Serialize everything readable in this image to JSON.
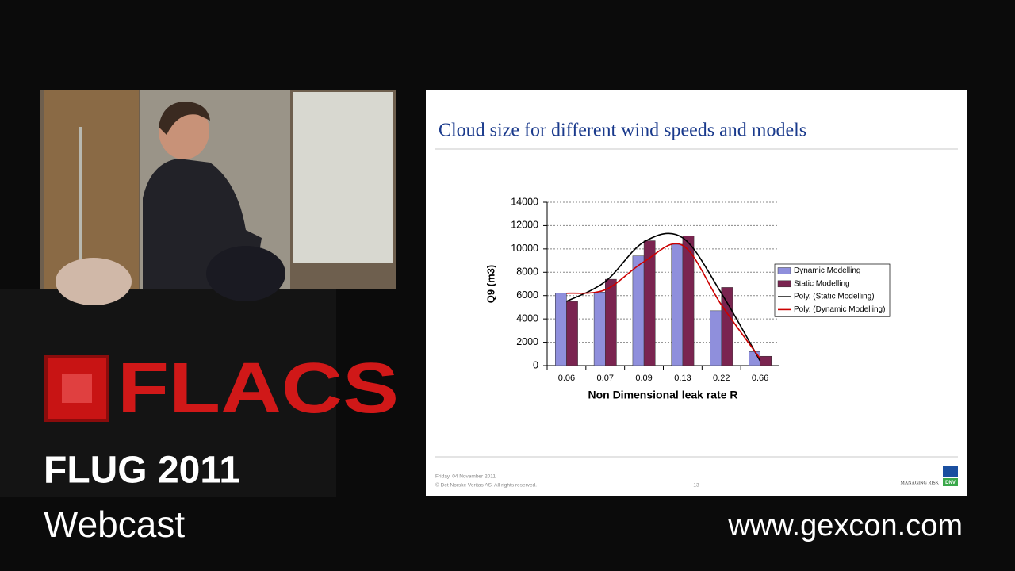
{
  "chart_data": {
    "type": "bar",
    "title": "Cloud size for different wind speeds and models",
    "x_label": "Non Dimensional leak rate R",
    "y_label": "Q9 (m3)",
    "categories": [
      "0.06",
      "0.07",
      "0.09",
      "0.13",
      "0.22",
      "0.66"
    ],
    "ylim": [
      0,
      14000
    ],
    "yticks": [
      0,
      2000,
      4000,
      6000,
      8000,
      10000,
      12000,
      14000
    ],
    "grid": true,
    "series": [
      {
        "name": "Dynamic Modelling",
        "color": "#8f8fdc",
        "values": [
          6200,
          6300,
          9400,
          10400,
          4700,
          1200
        ]
      },
      {
        "name": "Static Modelling",
        "color": "#7a2450",
        "values": [
          5500,
          7400,
          10700,
          11100,
          6700,
          800
        ]
      },
      {
        "name": "Poly. (Static Modelling)",
        "color": "#000000",
        "type": "line",
        "smooth": true,
        "values": [
          5500,
          7200,
          10600,
          10950,
          6200,
          400
        ]
      },
      {
        "name": "Poly. (Dynamic Modelling)",
        "color": "#cc0000",
        "type": "line",
        "smooth": true,
        "values": [
          6200,
          6500,
          8900,
          10300,
          5200,
          600
        ]
      }
    ]
  },
  "footer": {
    "date": "Friday, 04 November 2011",
    "copyright": "© Det Norske Veritas AS. All rights reserved.",
    "page": "13",
    "brand": "MANAGING RISK",
    "logo": "DNV"
  },
  "overlay": {
    "logo": "FLACS",
    "event": "FLUG 2011",
    "format": "Webcast",
    "url": "www.gexcon.com"
  }
}
